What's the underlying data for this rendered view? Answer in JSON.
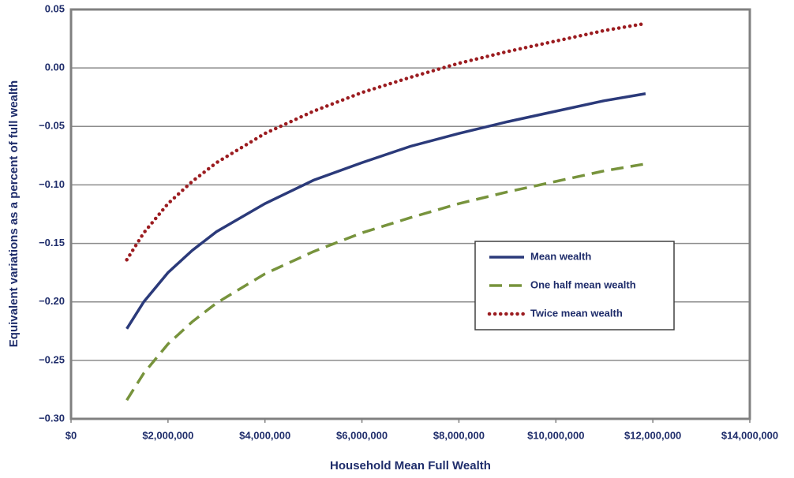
{
  "chart_data": {
    "type": "line",
    "xlabel": "Household Mean Full Wealth",
    "ylabel": "Equivalent variations as a percent of full wealth",
    "x": [
      1150000,
      1500000,
      2000000,
      2500000,
      3000000,
      4000000,
      5000000,
      6000000,
      7000000,
      8000000,
      9000000,
      10000000,
      11000000,
      11850000
    ],
    "series": [
      {
        "name": "Mean wealth",
        "color": "#2b3a7a",
        "style": "solid",
        "values": [
          -0.223,
          -0.2,
          -0.175,
          -0.156,
          -0.14,
          -0.116,
          -0.096,
          -0.081,
          -0.067,
          -0.056,
          -0.046,
          -0.037,
          -0.028,
          -0.022
        ]
      },
      {
        "name": "One half mean wealth",
        "color": "#77933c",
        "style": "dashed",
        "values": [
          -0.284,
          -0.261,
          -0.236,
          -0.217,
          -0.201,
          -0.176,
          -0.157,
          -0.141,
          -0.128,
          -0.116,
          -0.106,
          -0.097,
          -0.088,
          -0.082
        ]
      },
      {
        "name": "Twice mean wealth",
        "color": "#9b1c20",
        "style": "dotted",
        "values": [
          -0.164,
          -0.141,
          -0.116,
          -0.097,
          -0.081,
          -0.056,
          -0.037,
          -0.021,
          -0.008,
          0.004,
          0.014,
          0.023,
          0.032,
          0.038
        ]
      }
    ],
    "xlim": [
      0,
      14000000
    ],
    "xticks": [
      {
        "value": 0,
        "label": "$0"
      },
      {
        "value": 2000000,
        "label": "$2,000,000"
      },
      {
        "value": 4000000,
        "label": "$4,000,000"
      },
      {
        "value": 6000000,
        "label": "$6,000,000"
      },
      {
        "value": 8000000,
        "label": "$8,000,000"
      },
      {
        "value": 10000000,
        "label": "$10,000,000"
      },
      {
        "value": 12000000,
        "label": "$12,000,000"
      },
      {
        "value": 14000000,
        "label": "$14,000,000"
      }
    ],
    "ylim": [
      -0.3,
      0.05
    ],
    "yticks": [
      {
        "value": -0.3,
        "label": "−0.30"
      },
      {
        "value": -0.25,
        "label": "−0.25"
      },
      {
        "value": -0.2,
        "label": "−0.20"
      },
      {
        "value": -0.15,
        "label": "−0.15"
      },
      {
        "value": -0.1,
        "label": "−0.10"
      },
      {
        "value": -0.05,
        "label": "−0.05"
      },
      {
        "value": 0,
        "label": "0.00"
      },
      0.05
    ],
    "grid": true,
    "legend_position": "center right"
  }
}
